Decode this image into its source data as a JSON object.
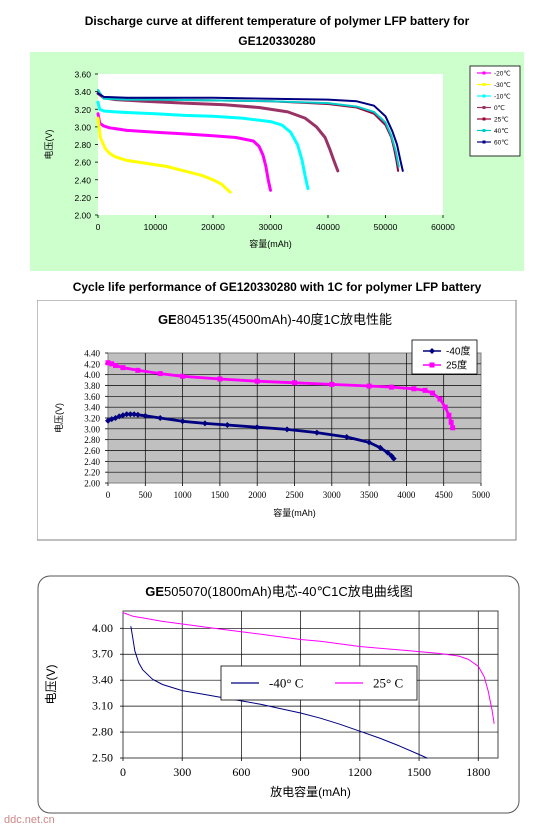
{
  "header": {
    "title_line1": "Discharge curve at different temperature of polymer LFP battery for",
    "title_line2": "GE120330280"
  },
  "section2_title": "Cycle life performance of GE120330280 with 1C for polymer LFP battery",
  "watermark": "ddc.net.cn",
  "chart_data": [
    {
      "type": "line",
      "bg_color": "#ccffcc",
      "plot_color": "#ffffff",
      "ylabel": "电压(V)",
      "xlabel": "容量(mAh)",
      "xlim": [
        0,
        60000
      ],
      "ylim": [
        2.0,
        3.6
      ],
      "xticks": [
        "0",
        "10000",
        "20000",
        "30000",
        "40000",
        "50000",
        "60000"
      ],
      "yticks": [
        "2.00",
        "2.20",
        "2.40",
        "2.60",
        "2.80",
        "3.00",
        "3.20",
        "3.40",
        "3.60"
      ],
      "grid": false,
      "legend_position": "right",
      "series": [
        {
          "name": "-20℃",
          "color": "#ff00ff",
          "width": 3,
          "x": [
            0,
            300,
            1000,
            2000,
            3000,
            5000,
            10000,
            15000,
            20000,
            24000,
            27000,
            28000,
            28700,
            29200,
            29600,
            30000
          ],
          "y": [
            3.15,
            3.04,
            3.01,
            2.99,
            2.98,
            2.96,
            2.94,
            2.92,
            2.9,
            2.88,
            2.84,
            2.78,
            2.68,
            2.55,
            2.4,
            2.28
          ]
        },
        {
          "name": "-30℃",
          "color": "#ffff00",
          "width": 3,
          "x": [
            0,
            400,
            800,
            1300,
            2000,
            3000,
            5000,
            8000,
            12000,
            15000,
            18000,
            20000,
            21500,
            22300,
            23000
          ],
          "y": [
            3.1,
            2.88,
            2.82,
            2.75,
            2.7,
            2.66,
            2.62,
            2.59,
            2.55,
            2.5,
            2.45,
            2.4,
            2.35,
            2.3,
            2.26
          ]
        },
        {
          "name": "-10℃",
          "color": "#00ffff",
          "width": 3,
          "x": [
            0,
            300,
            1000,
            3000,
            6000,
            10000,
            15000,
            20000,
            25000,
            30000,
            32000,
            33500,
            34700,
            35500,
            36000,
            36500
          ],
          "y": [
            3.28,
            3.2,
            3.18,
            3.17,
            3.16,
            3.15,
            3.13,
            3.12,
            3.1,
            3.06,
            3.02,
            2.94,
            2.8,
            2.62,
            2.45,
            2.3
          ]
        },
        {
          "name": "0℃",
          "color": "#993366",
          "width": 3,
          "x": [
            0,
            1000,
            3000,
            8000,
            15000,
            22000,
            28000,
            33000,
            36000,
            38000,
            39500,
            40300,
            41000,
            41700
          ],
          "y": [
            3.38,
            3.33,
            3.31,
            3.29,
            3.27,
            3.25,
            3.22,
            3.17,
            3.1,
            3.0,
            2.88,
            2.75,
            2.62,
            2.5
          ]
        },
        {
          "name": "25℃",
          "color": "#990033",
          "width": 2,
          "x": [
            0,
            1000,
            5000,
            10000,
            20000,
            30000,
            40000,
            45000,
            48000,
            50000,
            51000,
            51500,
            51900,
            52200
          ],
          "y": [
            3.4,
            3.33,
            3.32,
            3.31,
            3.3,
            3.29,
            3.26,
            3.22,
            3.15,
            3.02,
            2.88,
            2.75,
            2.62,
            2.5
          ]
        },
        {
          "name": "40℃",
          "color": "#00cccc",
          "width": 2,
          "x": [
            0,
            1000,
            5000,
            10000,
            20000,
            30000,
            40000,
            45000,
            48000,
            50000,
            51000,
            51800,
            52300
          ],
          "y": [
            3.42,
            3.32,
            3.31,
            3.31,
            3.3,
            3.29,
            3.27,
            3.23,
            3.17,
            3.05,
            2.9,
            2.72,
            2.55
          ]
        },
        {
          "name": "60℃",
          "color": "#000080",
          "width": 2,
          "x": [
            0,
            1000,
            5000,
            10000,
            20000,
            30000,
            40000,
            45000,
            48000,
            50000,
            51200,
            52000,
            52600,
            53000
          ],
          "y": [
            3.38,
            3.34,
            3.33,
            3.33,
            3.33,
            3.32,
            3.31,
            3.29,
            3.24,
            3.12,
            2.95,
            2.8,
            2.62,
            2.5
          ]
        }
      ]
    },
    {
      "type": "line",
      "title_bold": "GE",
      "title": "8045135(4500mAh)-40度1C放电性能",
      "bg_color": "#ffffff",
      "plot_color": "#c0c0c0",
      "ylabel": "电压(V)",
      "xlabel": "容量(mAh)",
      "xlim": [
        0,
        5000
      ],
      "ylim": [
        2.0,
        4.4
      ],
      "xticks": [
        "0",
        "500",
        "1000",
        "1500",
        "2000",
        "2500",
        "3000",
        "3500",
        "4000",
        "4500",
        "5000"
      ],
      "yticks": [
        "2.00",
        "2.20",
        "2.40",
        "2.60",
        "2.80",
        "3.00",
        "3.20",
        "3.40",
        "3.60",
        "3.80",
        "4.00",
        "4.20",
        "4.40"
      ],
      "grid": true,
      "legend_position": "top-right",
      "series": [
        {
          "name": "-40度",
          "color": "#000080",
          "marker": "diamond",
          "x": [
            0,
            50,
            100,
            150,
            200,
            250,
            300,
            350,
            400,
            500,
            700,
            1000,
            1300,
            1600,
            2000,
            2400,
            2800,
            3200,
            3500,
            3650,
            3750,
            3800,
            3830
          ],
          "y": [
            3.15,
            3.18,
            3.2,
            3.23,
            3.25,
            3.27,
            3.27,
            3.27,
            3.26,
            3.24,
            3.2,
            3.14,
            3.1,
            3.07,
            3.03,
            2.99,
            2.93,
            2.85,
            2.75,
            2.65,
            2.56,
            2.5,
            2.45
          ]
        },
        {
          "name": "25度",
          "color": "#ff00ff",
          "marker": "square",
          "x": [
            0,
            50,
            100,
            200,
            400,
            700,
            1000,
            1500,
            2000,
            2500,
            3000,
            3500,
            3800,
            4100,
            4250,
            4350,
            4450,
            4520,
            4570,
            4600,
            4620
          ],
          "y": [
            4.22,
            4.2,
            4.17,
            4.13,
            4.08,
            4.02,
            3.97,
            3.92,
            3.88,
            3.85,
            3.82,
            3.79,
            3.77,
            3.74,
            3.71,
            3.66,
            3.55,
            3.4,
            3.25,
            3.12,
            3.02
          ]
        }
      ]
    },
    {
      "type": "line",
      "title_bold": "GE",
      "title": "505070(1800mAh)电芯-40℃1C放电曲线图",
      "bg_color": "#ffffff",
      "plot_color": "#ffffff",
      "ylabel": "电压(V)",
      "xlabel": "放电容量(mAh)",
      "xlim": [
        0,
        1900
      ],
      "ylim": [
        2.5,
        4.2
      ],
      "xticks": [
        "0",
        "300",
        "600",
        "900",
        "1200",
        "1500",
        "1800"
      ],
      "yticks": [
        "2.50",
        "2.80",
        "3.10",
        "3.40",
        "3.70",
        "4.00"
      ],
      "grid": true,
      "legend_position": "center",
      "series": [
        {
          "name": "-40° C",
          "color": "#000080",
          "x": [
            40,
            50,
            60,
            80,
            100,
            150,
            200,
            300,
            400,
            500,
            600,
            700,
            800,
            900,
            1000,
            1100,
            1200,
            1300,
            1400,
            1500,
            1540
          ],
          "y": [
            4.02,
            3.88,
            3.74,
            3.6,
            3.52,
            3.41,
            3.35,
            3.28,
            3.24,
            3.2,
            3.16,
            3.12,
            3.07,
            3.02,
            2.96,
            2.89,
            2.81,
            2.73,
            2.64,
            2.54,
            2.5
          ]
        },
        {
          "name": "25° C",
          "color": "#ff00ff",
          "x": [
            0,
            50,
            100,
            200,
            300,
            400,
            500,
            600,
            700,
            800,
            900,
            1000,
            1100,
            1200,
            1300,
            1400,
            1500,
            1600,
            1700,
            1750,
            1800,
            1830,
            1850,
            1870,
            1880
          ],
          "y": [
            4.18,
            4.14,
            4.12,
            4.08,
            4.05,
            4.02,
            3.99,
            3.96,
            3.93,
            3.9,
            3.87,
            3.85,
            3.82,
            3.79,
            3.77,
            3.75,
            3.73,
            3.71,
            3.68,
            3.64,
            3.56,
            3.44,
            3.28,
            3.05,
            2.9
          ]
        }
      ]
    }
  ]
}
